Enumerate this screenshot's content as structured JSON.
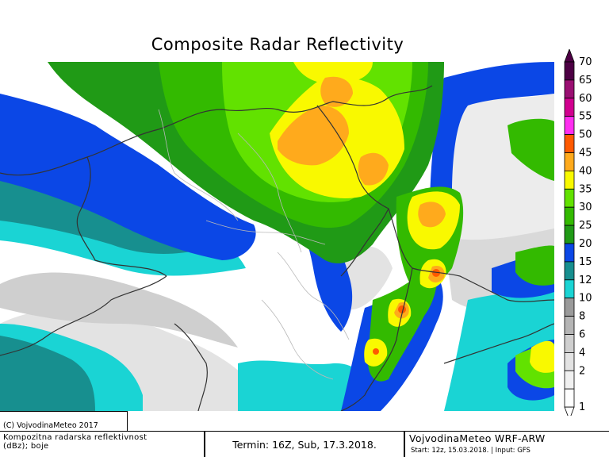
{
  "title": "Composite Radar Reflectivity",
  "legend": {
    "labels": [
      "70",
      "65",
      "60",
      "55",
      "50",
      "45",
      "40",
      "35",
      "30",
      "25",
      "20",
      "15",
      "12",
      "10",
      "8",
      "6",
      "4",
      "2",
      "1"
    ],
    "colors": [
      "#4d0044",
      "#9a0f72",
      "#d1008f",
      "#ff2ef0",
      "#ff5a00",
      "#ffaa1c",
      "#f9f900",
      "#62e200",
      "#33ba00",
      "#209a16",
      "#0b47e6",
      "#178f8f",
      "#1ad4d4",
      "#9a9a9a",
      "#b5b5b5",
      "#cfcfcf",
      "#e3e3e3",
      "#f0f0f0",
      "#ffffff"
    ]
  },
  "footer": {
    "copyright": "(C) VojvodinaMeteo 2017",
    "description_line1": "Kompozitna radarska reflektivnost",
    "description_line2": "(dBz); boje",
    "termin": "Termin: 16Z, Sub, 17.3.2018.",
    "model_title": "VojvodinaMeteo WRF-ARW",
    "model_info": "Start: 12z, 15.03.2018. | Input: GFS"
  }
}
